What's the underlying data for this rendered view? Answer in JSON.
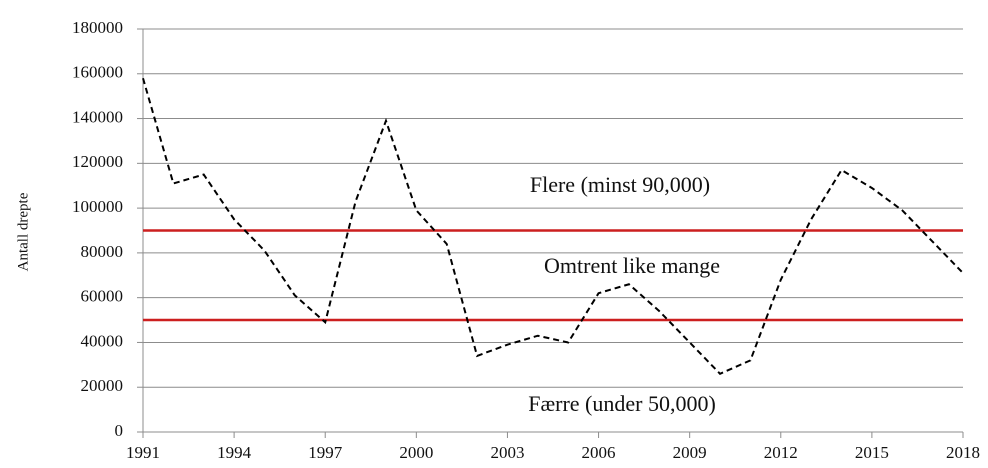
{
  "chart_data": {
    "type": "line",
    "y_label": "Antall  drepte",
    "x": [
      1991,
      1992,
      1993,
      1994,
      1995,
      1996,
      1997,
      1998,
      1999,
      2000,
      2001,
      2002,
      2003,
      2004,
      2005,
      2006,
      2007,
      2008,
      2009,
      2010,
      2011,
      2012,
      2013,
      2014,
      2015,
      2016,
      2017,
      2018
    ],
    "values": [
      158000,
      111000,
      115000,
      95000,
      81000,
      61000,
      49000,
      103000,
      139000,
      99000,
      84000,
      34000,
      39000,
      43000,
      40000,
      62000,
      66000,
      54000,
      40000,
      26000,
      32000,
      68000,
      95000,
      117000,
      109000,
      99000,
      85000,
      71000
    ],
    "color": "#000000",
    "line_style": "dashed",
    "xlim": [
      1991,
      2018
    ],
    "xticks": [
      1991,
      1994,
      1997,
      2000,
      2003,
      2006,
      2009,
      2012,
      2015,
      2018
    ],
    "ylim": [
      0,
      180000
    ],
    "yticks": [
      0,
      20000,
      40000,
      60000,
      80000,
      100000,
      120000,
      140000,
      160000,
      180000
    ],
    "grid": true,
    "reference_lines": [
      {
        "value": 90000,
        "color": "#cc1f1f"
      },
      {
        "value": 50000,
        "color": "#cc1f1f"
      }
    ],
    "annotations": [
      "Flere (minst 90,000)",
      "Omtrent like mange",
      "Færre (under 50,000)"
    ]
  }
}
